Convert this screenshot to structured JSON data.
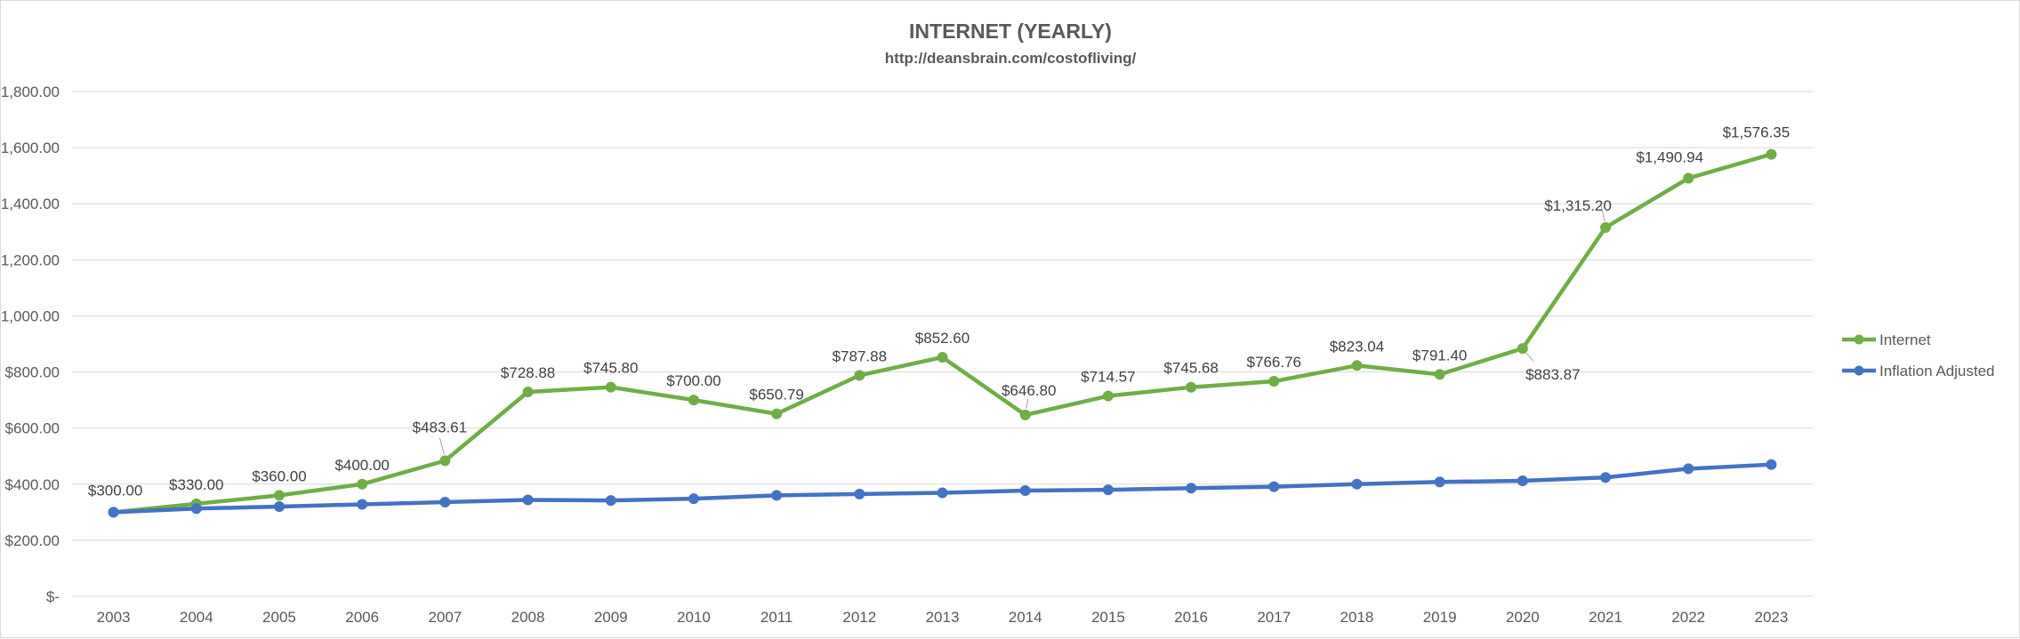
{
  "chart_data": {
    "type": "line",
    "title": "INTERNET (YEARLY)",
    "subtitle": "http://deansbrain.com/costofliving/",
    "categories": [
      "2003",
      "2004",
      "2005",
      "2006",
      "2007",
      "2008",
      "2009",
      "2010",
      "2011",
      "2012",
      "2013",
      "2014",
      "2015",
      "2016",
      "2017",
      "2018",
      "2019",
      "2020",
      "2021",
      "2022",
      "2023"
    ],
    "ylim": [
      0,
      1800
    ],
    "y_ticks": [
      0,
      200,
      400,
      600,
      800,
      1000,
      1200,
      1400,
      1600,
      1800
    ],
    "y_tick_labels": [
      "$-",
      "$200.00",
      "$400.00",
      "$600.00",
      "$800.00",
      "$1,000.00",
      "$1,200.00",
      "$1,400.00",
      "$1,600.00",
      "$1,800.00"
    ],
    "grid": true,
    "legend_position": "right",
    "series": [
      {
        "name": "Internet",
        "color": "#70ad47",
        "values": [
          300.0,
          330.0,
          360.0,
          400.0,
          483.61,
          728.88,
          745.8,
          700.0,
          650.79,
          787.88,
          852.6,
          646.8,
          714.57,
          745.68,
          766.76,
          823.04,
          791.4,
          883.87,
          1315.2,
          1490.94,
          1576.35
        ],
        "data_labels": [
          "$300.00",
          "$330.00",
          "$360.00",
          "$400.00",
          "$483.61",
          "$728.88",
          "$745.80",
          "$700.00",
          "$650.79",
          "$787.88",
          "$852.60",
          "$646.80",
          "$714.57",
          "$745.68",
          "$766.76",
          "$823.04",
          "$791.40",
          "$883.87",
          "$1,315.20",
          "$1,490.94",
          "$1,576.35"
        ]
      },
      {
        "name": "Inflation Adjusted",
        "color": "#4472c4",
        "values": [
          300,
          313,
          320,
          328,
          336,
          344,
          342,
          348,
          360,
          365,
          369,
          377,
          380,
          386,
          391,
          400,
          408,
          412,
          424,
          455,
          470
        ]
      }
    ]
  }
}
